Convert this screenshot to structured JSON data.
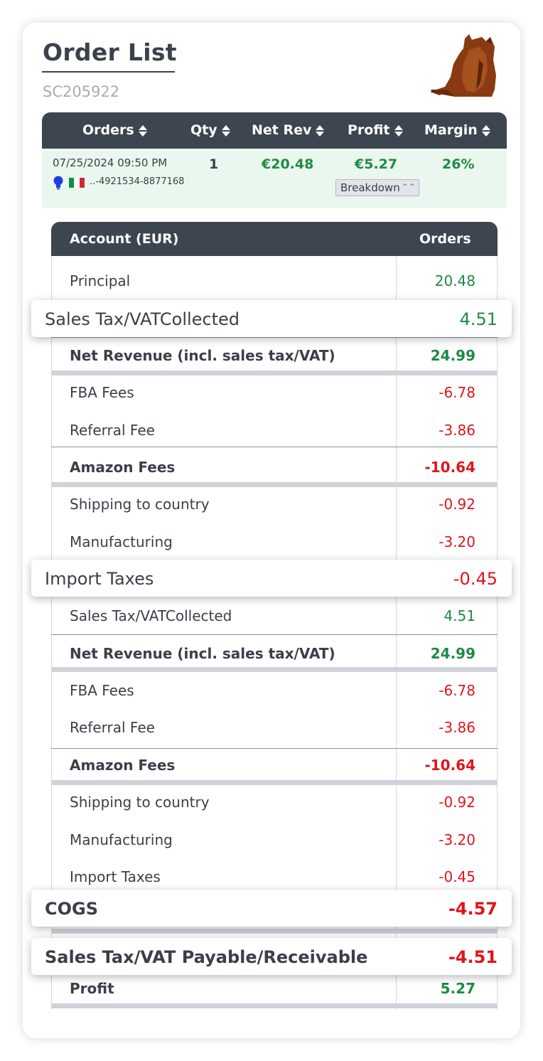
{
  "page": {
    "title": "Order List",
    "subtitle": "SC205922"
  },
  "orders_table": {
    "headers": [
      "Orders",
      "Qty",
      "Net Rev",
      "Profit",
      "Margin"
    ],
    "row": {
      "date": "07/25/2024 09:50 PM",
      "order_id": "..-4921534-8877168",
      "qty": "1",
      "net_rev": "€20.48",
      "profit": "€5.27",
      "margin": "26%",
      "breakdown_label": "Breakdown",
      "marketplace_flag": "italy-flag-icon",
      "status_icon": "lightbulb-icon"
    }
  },
  "account_table": {
    "header_account": "Account (EUR)",
    "header_orders": "Orders",
    "rows": [
      {
        "label": "Principal",
        "value": "20.48"
      },
      {
        "label": "Sales Tax/VATCollected",
        "value": "4.51"
      },
      {
        "label": "Net Revenue (incl. sales tax/VAT)",
        "value": "24.99"
      },
      {
        "label": "FBA Fees",
        "value": "-6.78"
      },
      {
        "label": "Referral Fee",
        "value": "-3.86"
      },
      {
        "label": "Amazon Fees",
        "value": "-10.64"
      },
      {
        "label": "Shipping to country",
        "value": "-0.92"
      },
      {
        "label": "Manufacturing",
        "value": "-3.20"
      },
      {
        "label": "Import Taxes",
        "value": "-0.45"
      },
      {
        "label": "Sales Tax/VATCollected",
        "value": "4.51"
      },
      {
        "label": "Net Revenue (incl. sales tax/VAT)",
        "value": "24.99"
      },
      {
        "label": "FBA Fees",
        "value": "-6.78"
      },
      {
        "label": "Referral Fee",
        "value": "-3.86"
      },
      {
        "label": "Amazon Fees",
        "value": "-10.64"
      },
      {
        "label": "Shipping to country",
        "value": "-0.92"
      },
      {
        "label": "Manufacturing",
        "value": "-3.20"
      },
      {
        "label": "Import Taxes",
        "value": "-0.45"
      },
      {
        "label": "COGS",
        "value": "-4.57"
      },
      {
        "label": "Sales Tax/VAT Payable/Receivable",
        "value": "-4.51"
      },
      {
        "label": "Profit",
        "value": "5.27"
      }
    ]
  },
  "colors": {
    "header_bg": "#3d4550",
    "positive": "#1f8a45",
    "negative": "#e0151b",
    "order_row_bg": "#e9f7ee"
  }
}
